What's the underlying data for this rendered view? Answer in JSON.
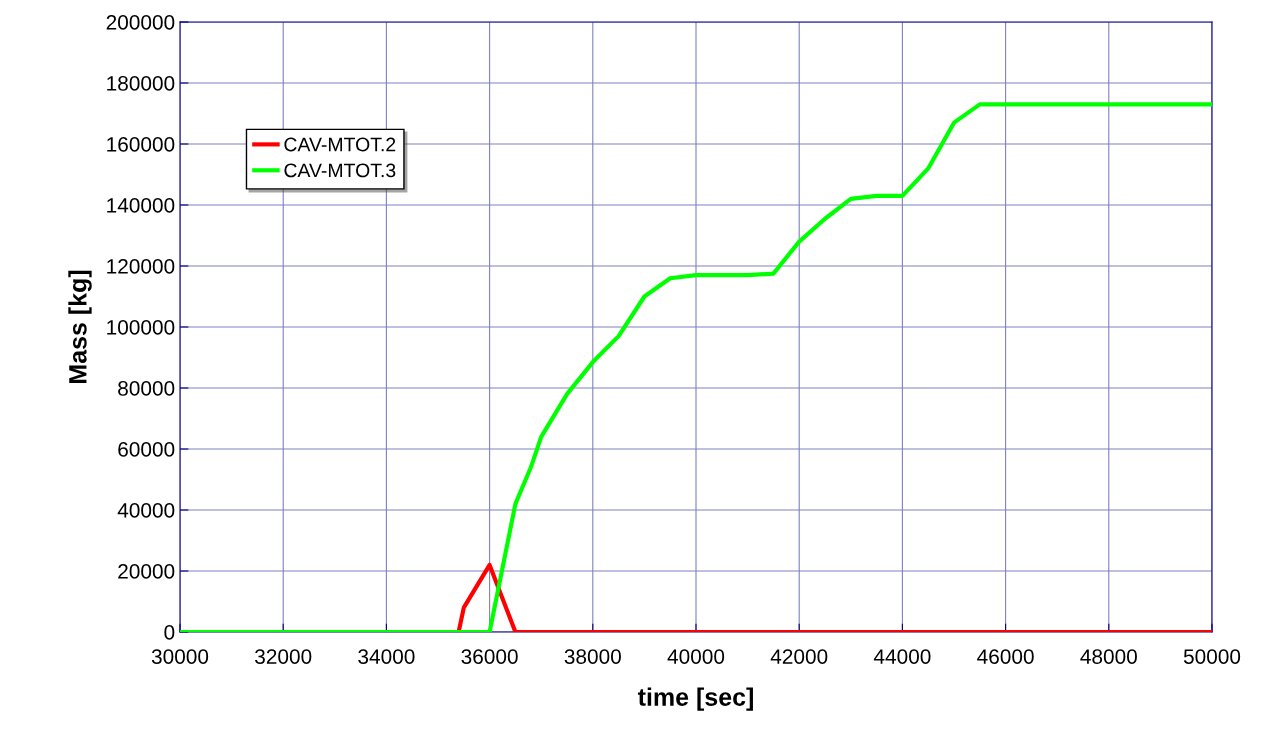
{
  "chart_data": {
    "type": "line",
    "xlabel": "time [sec]",
    "ylabel": "Mass [kg]",
    "xlim": [
      30000,
      50000
    ],
    "xticks": [
      30000,
      32000,
      34000,
      36000,
      38000,
      40000,
      42000,
      44000,
      46000,
      48000,
      50000
    ],
    "ylim": [
      0,
      200000
    ],
    "yticks": [
      0,
      20000,
      40000,
      60000,
      80000,
      100000,
      120000,
      140000,
      160000,
      180000,
      200000
    ],
    "grid": true,
    "legend": "top left",
    "marker": "none",
    "line_style": "solid",
    "series": [
      {
        "name": "CAV-MTOT.2",
        "color": "#ff0000",
        "x": [
          30000,
          35400,
          35500,
          36000,
          36500,
          50000
        ],
        "values": [
          0,
          0,
          8000,
          22000,
          0,
          0
        ]
      },
      {
        "name": "CAV-MTOT.3",
        "color": "#00ff00",
        "x": [
          30000,
          36000,
          36500,
          36800,
          37000,
          37500,
          38000,
          38500,
          39000,
          39500,
          40000,
          41000,
          41500,
          42000,
          42500,
          43000,
          43500,
          44000,
          44500,
          45000,
          45500,
          50000
        ],
        "values": [
          0,
          0,
          42000,
          54000,
          64000,
          78000,
          88500,
          97000,
          110000,
          116000,
          117000,
          117000,
          117500,
          128000,
          135500,
          142000,
          143000,
          143000,
          152000,
          167000,
          173000,
          173000
        ]
      }
    ]
  }
}
